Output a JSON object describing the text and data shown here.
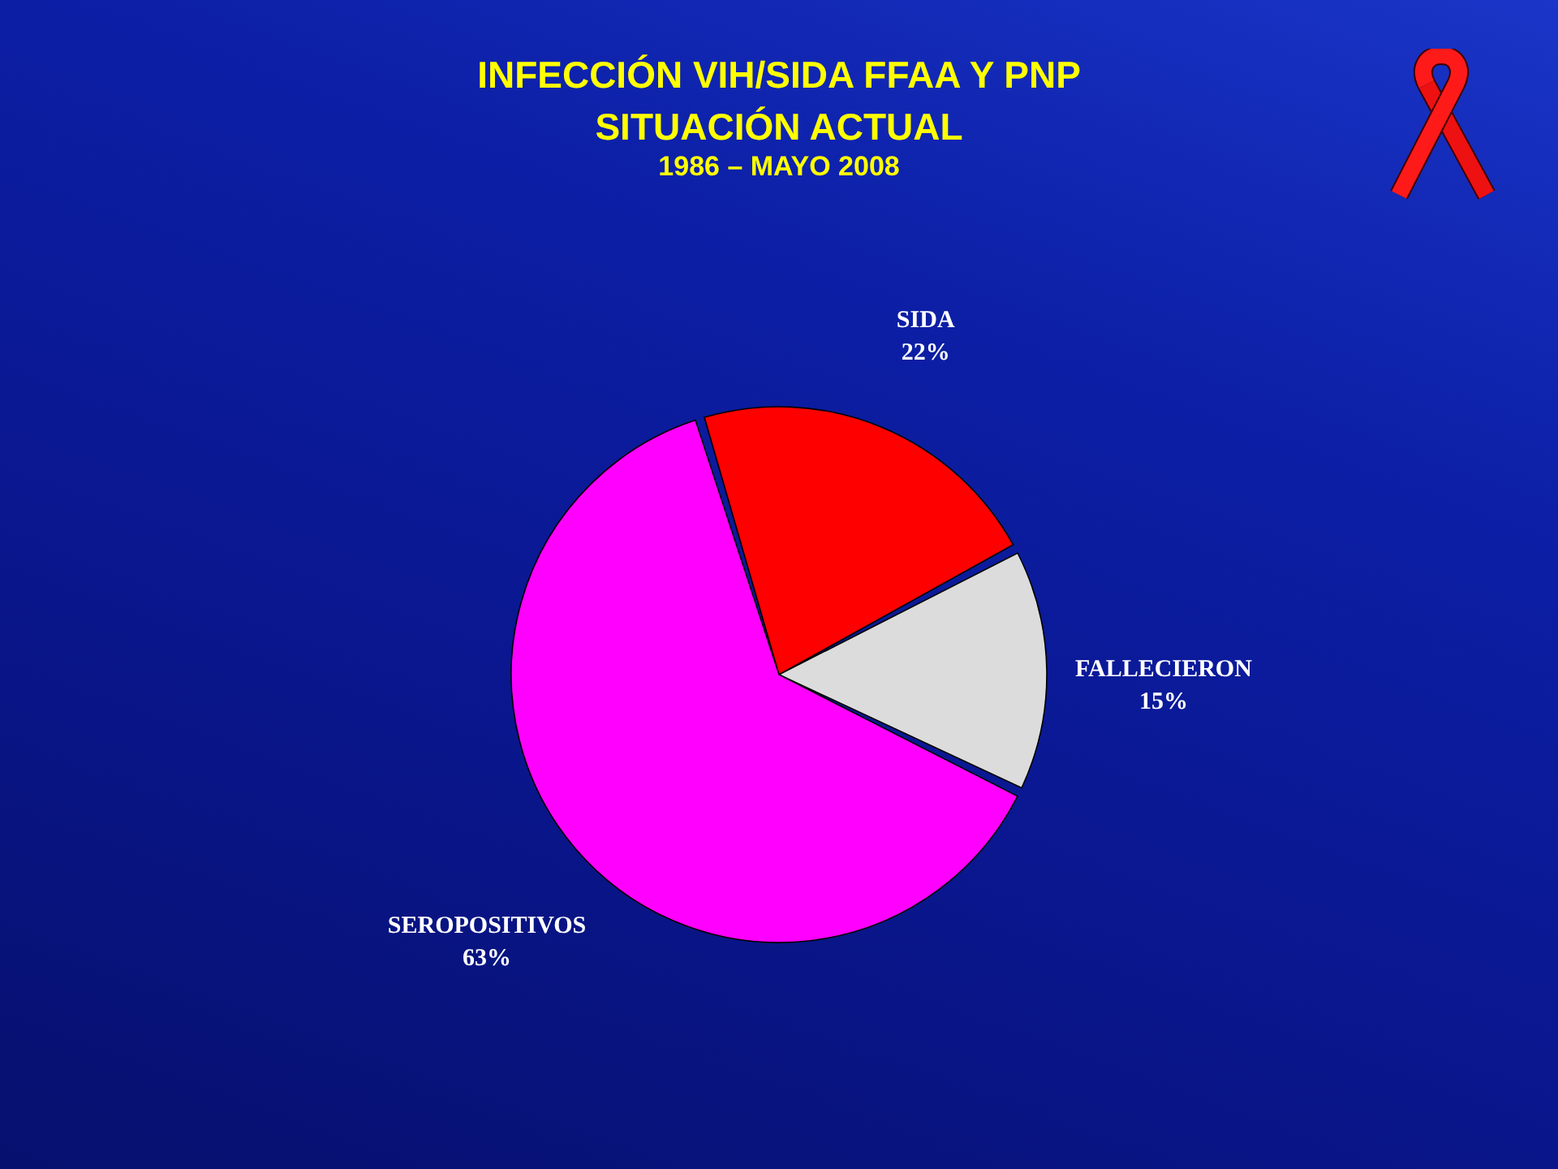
{
  "chart_data": {
    "type": "pie",
    "title": "INFECCIÓN VIH/SIDA  FFAA Y PNP\nSITUACIÓN ACTUAL",
    "subtitle": "1986 – MAYO 2008",
    "categories": [
      "SIDA",
      "FALLECIERON",
      "SEROPOSITIVOS"
    ],
    "values": [
      22,
      15,
      63
    ],
    "value_labels": [
      "22%",
      "15%",
      "63%"
    ],
    "colors": [
      "#ff0000",
      "#dcdcdc",
      "#ff00ff"
    ],
    "legend": false
  }
}
